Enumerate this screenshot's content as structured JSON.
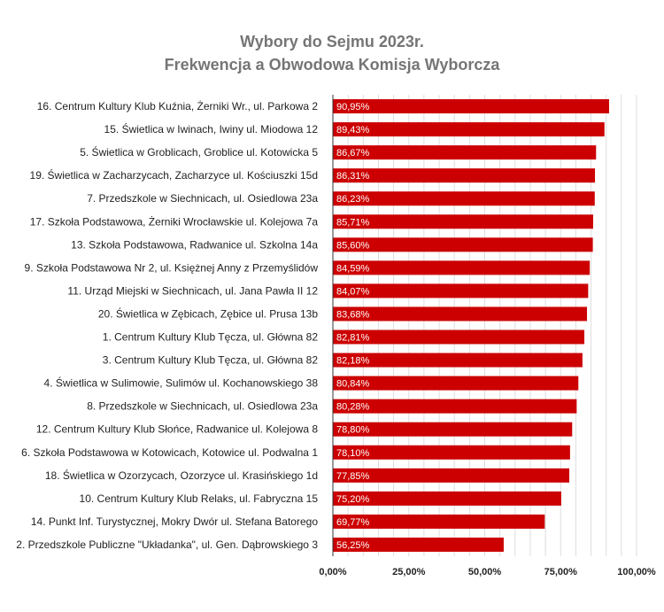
{
  "chart_data": {
    "type": "bar",
    "orientation": "horizontal",
    "title": "Wybory do Sejmu 2023r.",
    "subtitle": "Frekwencja a Obwodowa Komisja Wyborcza",
    "categories": [
      "16. Centrum Kultury Klub Kuźnia, Żerniki Wr., ul. Parkowa 2",
      "15. Świetlica w Iwinach, Iwiny ul. Miodowa 12",
      "5. Świetlica w Groblicach, Groblice ul. Kotowicka 5",
      "19. Świetlica w Zacharzycach, Zacharzyce ul. Kościuszki 15d",
      "7. Przedszkole w Siechnicach, ul. Osiedlowa 23a",
      "17. Szkoła Podstawowa, Żerniki Wrocławskie ul. Kolejowa 7a",
      "13. Szkoła Podstawowa, Radwanice ul. Szkolna 14a",
      "9. Szkoła Podstawowa Nr 2, ul. Księżnej Anny z Przemyślidów",
      "11. Urząd Miejski w Siechnicach, ul. Jana Pawła II 12",
      "20. Świetlica w Zębicach, Zębice ul. Prusa 13b",
      "1. Centrum Kultury Klub Tęcza, ul. Główna 82",
      "3. Centrum Kultury Klub Tęcza, ul. Główna 82",
      "4. Świetlica w Sulimowie, Sulimów ul. Kochanowskiego 38",
      "8. Przedszkole w Siechnicach, ul. Osiedlowa 23a",
      "12. Centrum Kultury Klub Słońce, Radwanice ul. Kolejowa 8",
      "6. Szkoła Podstawowa w Kotowicach, Kotowice ul. Podwalna 1",
      "18. Świetlica w Ozorzycach, Ozorzyce ul. Krasińskiego 1d",
      "10. Centrum Kultury Klub Relaks, ul. Fabryczna 15",
      "14. Punkt Inf. Turystycznej, Mokry Dwór ul. Stefana Batorego",
      "2. Przedszkole Publiczne \"Układanka\", ul. Gen. Dąbrowskiego 3"
    ],
    "values": [
      90.95,
      89.43,
      86.67,
      86.31,
      86.23,
      85.71,
      85.6,
      84.59,
      84.07,
      83.68,
      82.81,
      82.18,
      80.84,
      80.28,
      78.8,
      78.1,
      77.85,
      75.2,
      69.77,
      56.25
    ],
    "data_labels": [
      "90,95%",
      "89,43%",
      "86,67%",
      "86,31%",
      "86,23%",
      "85,71%",
      "85,60%",
      "84,59%",
      "84,07%",
      "83,68%",
      "82,81%",
      "82,18%",
      "80,84%",
      "80,28%",
      "78,80%",
      "78,10%",
      "77,85%",
      "75,20%",
      "69,77%",
      "56,25%"
    ],
    "xlim": [
      0,
      100
    ],
    "x_ticks": [
      0,
      25,
      50,
      75,
      100
    ],
    "x_tick_labels": [
      "0,00%",
      "25,00%",
      "50,00%",
      "75,00%",
      "100,00%"
    ],
    "grid": true,
    "legend": "none",
    "bar_color": "#cc0000",
    "grid_color": "#dddddd",
    "axis_color": "#333333"
  }
}
